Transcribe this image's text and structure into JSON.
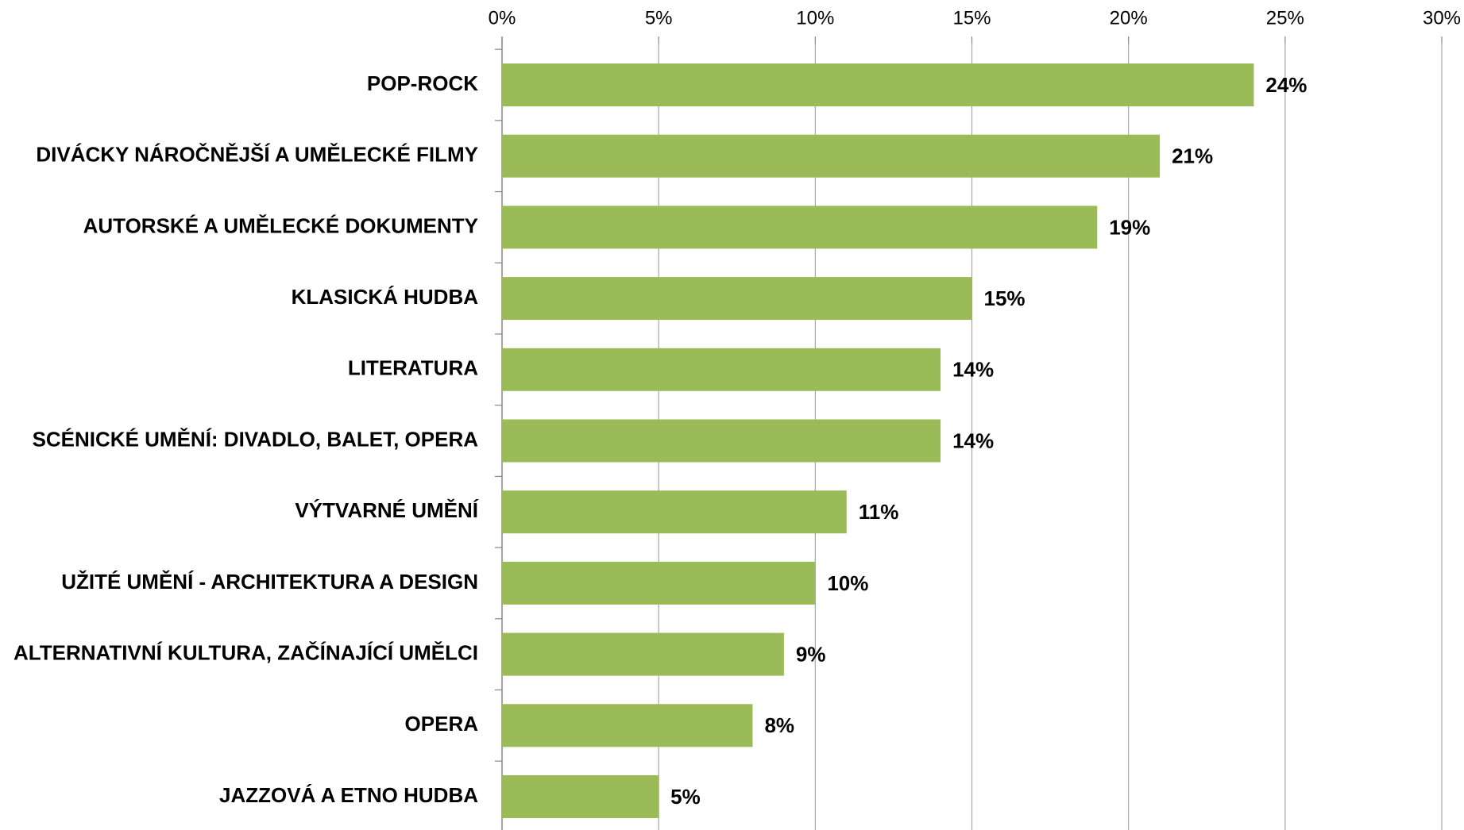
{
  "chart_data": {
    "type": "bar",
    "orientation": "horizontal",
    "categories": [
      "POP-ROCK",
      "DIVÁCKY NÁROČNĚJŠÍ A UMĚLECKÉ FILMY",
      "AUTORSKÉ A UMĚLECKÉ DOKUMENTY",
      "KLASICKÁ HUDBA",
      "LITERATURA",
      "SCÉNICKÉ UMĚNÍ: DIVADLO, BALET, OPERA",
      "VÝTVARNÉ UMĚNÍ",
      "UŽITÉ UMĚNÍ - ARCHITEKTURA A DESIGN",
      "ALTERNATIVNÍ KULTURA, ZAČÍNAJÍCÍ UMĚLCI",
      "OPERA",
      "JAZZOVÁ A ETNO HUDBA"
    ],
    "values": [
      24,
      21,
      19,
      15,
      14,
      14,
      11,
      10,
      9,
      8,
      5
    ],
    "value_labels": [
      "24%",
      "21%",
      "19%",
      "15%",
      "14%",
      "14%",
      "11%",
      "10%",
      "9%",
      "8%",
      "5%"
    ],
    "color": "#9bbb59",
    "xlim": [
      0,
      30
    ],
    "xticks": [
      {
        "value": 0,
        "label": "0%"
      },
      {
        "value": 5,
        "label": "5%"
      },
      {
        "value": 10,
        "label": "10%"
      },
      {
        "value": 15,
        "label": "15%"
      },
      {
        "value": 20,
        "label": "20%"
      },
      {
        "value": 25,
        "label": "25%"
      },
      {
        "value": 30,
        "label": "30%"
      }
    ],
    "grid": true
  }
}
